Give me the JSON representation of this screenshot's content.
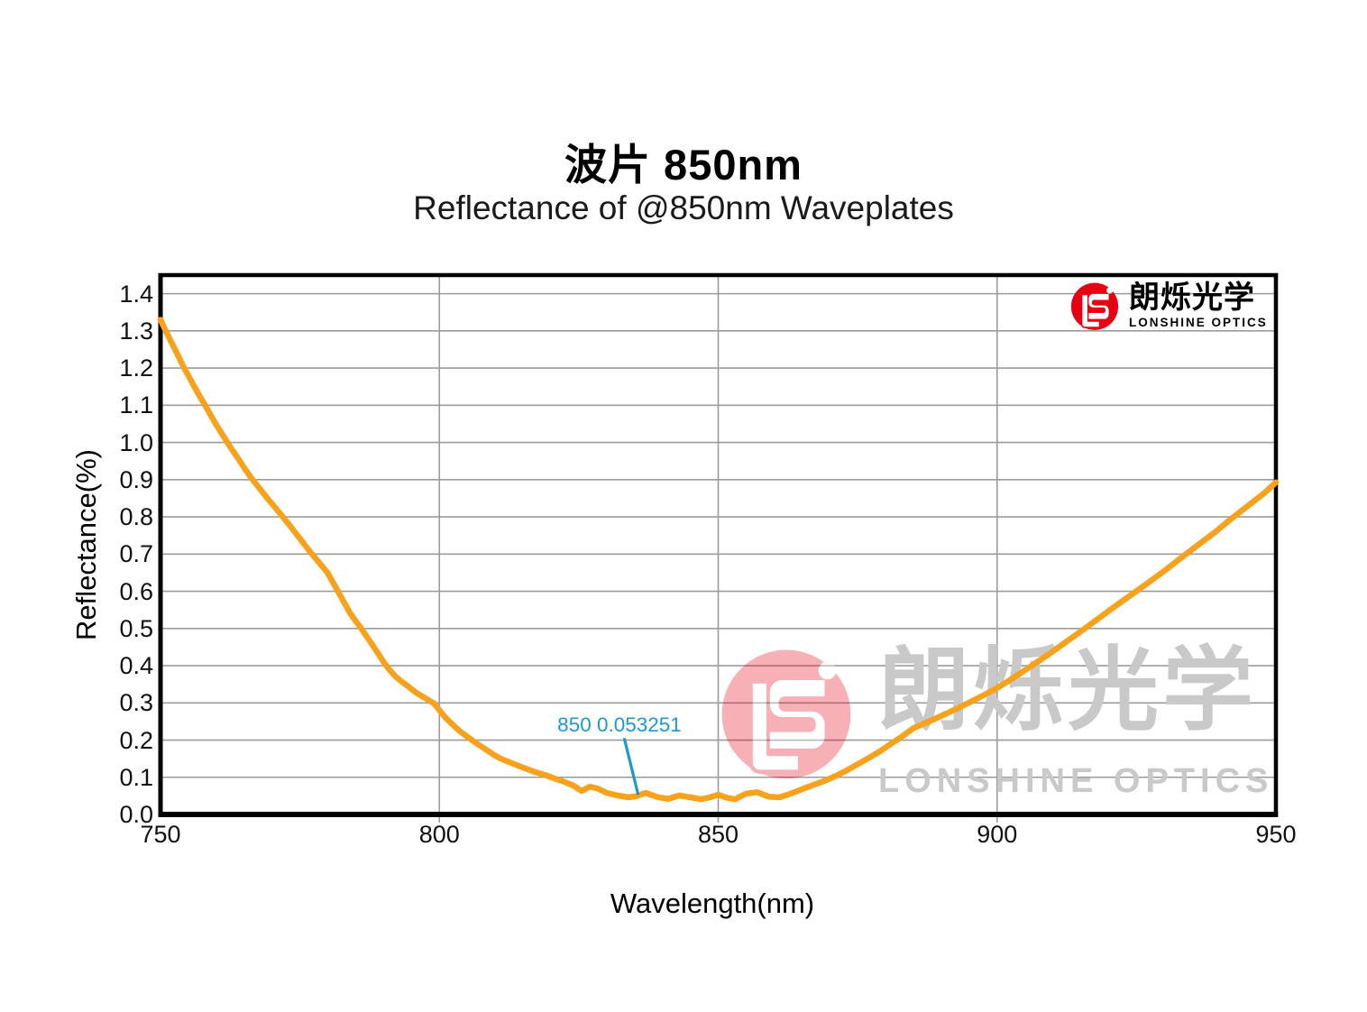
{
  "header": {
    "title": "波片 850nm",
    "subtitle": "Reflectance of @850nm Waveplates"
  },
  "brand": {
    "cn": "朗烁光学",
    "en": "LONSHINE OPTICS"
  },
  "watermark": {
    "cn": "朗烁光学",
    "en": "LONSHINE OPTICS"
  },
  "colors": {
    "curve": "#F7A21C",
    "annotation": "#1E97D4",
    "brand": "#E60012",
    "grid": "#9C9C9C",
    "axis": "#000000",
    "watermark": "#C9C9C9"
  },
  "chart_data": {
    "type": "line",
    "title": "Reflectance of @850nm Waveplates",
    "xlabel": "Wavelength(nm)",
    "ylabel": "Reflectance(%)",
    "xlim": [
      750,
      950
    ],
    "ylim": [
      0,
      1.45
    ],
    "x_ticks": [
      "750",
      "800",
      "850",
      "900",
      "950"
    ],
    "y_ticks": [
      "0.0",
      "0.1",
      "0.2",
      "0.3",
      "0.4",
      "0.5",
      "0.6",
      "0.7",
      "0.8",
      "0.9",
      "1.0",
      "1.1",
      "1.2",
      "1.3",
      "1.4"
    ],
    "grid": true,
    "legend": "none",
    "annotation": {
      "text": "850 0.053251",
      "points_to": {
        "x": 835.5,
        "y": 0.055
      },
      "line": [
        [
          833.2,
          0.202
        ],
        [
          835.6,
          0.056
        ]
      ]
    },
    "min_point": {
      "x": 850,
      "y": 0.053251
    },
    "series": [
      {
        "name": "Reflectance",
        "points": [
          [
            750,
            1.33
          ],
          [
            751,
            1.298
          ],
          [
            752,
            1.268
          ],
          [
            753,
            1.238
          ],
          [
            754,
            1.207
          ],
          [
            755,
            1.18
          ],
          [
            756,
            1.152
          ],
          [
            757,
            1.125
          ],
          [
            758,
            1.1
          ],
          [
            759,
            1.073
          ],
          [
            760,
            1.048
          ],
          [
            761,
            1.024
          ],
          [
            762,
            1.0
          ],
          [
            763,
            0.977
          ],
          [
            764,
            0.955
          ],
          [
            765,
            0.932
          ],
          [
            766,
            0.91
          ],
          [
            767,
            0.891
          ],
          [
            768,
            0.872
          ],
          [
            769,
            0.853
          ],
          [
            770,
            0.835
          ],
          [
            771,
            0.817
          ],
          [
            772,
            0.799
          ],
          [
            773,
            0.78
          ],
          [
            774,
            0.761
          ],
          [
            775,
            0.742
          ],
          [
            776,
            0.722
          ],
          [
            777,
            0.703
          ],
          [
            778,
            0.685
          ],
          [
            779,
            0.667
          ],
          [
            780,
            0.649
          ],
          [
            781,
            0.622
          ],
          [
            782,
            0.595
          ],
          [
            783,
            0.568
          ],
          [
            784,
            0.541
          ],
          [
            785,
            0.52
          ],
          [
            786,
            0.5
          ],
          [
            787,
            0.478
          ],
          [
            788,
            0.456
          ],
          [
            789,
            0.433
          ],
          [
            790,
            0.41
          ],
          [
            791,
            0.39
          ],
          [
            792,
            0.373
          ],
          [
            793,
            0.36
          ],
          [
            794,
            0.349
          ],
          [
            795,
            0.337
          ],
          [
            796,
            0.326
          ],
          [
            797,
            0.317
          ],
          [
            798,
            0.308
          ],
          [
            799,
            0.299
          ],
          [
            800,
            0.28
          ],
          [
            801,
            0.262
          ],
          [
            802,
            0.247
          ],
          [
            803,
            0.233
          ],
          [
            804,
            0.22
          ],
          [
            805,
            0.209
          ],
          [
            806,
            0.198
          ],
          [
            807,
            0.188
          ],
          [
            808,
            0.178
          ],
          [
            809,
            0.168
          ],
          [
            810,
            0.158
          ],
          [
            811,
            0.15
          ],
          [
            813,
            0.138
          ],
          [
            815,
            0.126
          ],
          [
            817,
            0.115
          ],
          [
            819,
            0.106
          ],
          [
            821,
            0.095
          ],
          [
            822,
            0.09
          ],
          [
            824,
            0.078
          ],
          [
            825.5,
            0.063
          ],
          [
            827,
            0.075
          ],
          [
            828.5,
            0.069
          ],
          [
            830,
            0.058
          ],
          [
            832,
            0.051
          ],
          [
            834,
            0.046
          ],
          [
            835.5,
            0.05
          ],
          [
            837,
            0.058
          ],
          [
            839,
            0.047
          ],
          [
            841,
            0.042
          ],
          [
            843,
            0.051
          ],
          [
            845,
            0.046
          ],
          [
            847,
            0.041
          ],
          [
            848.5,
            0.046
          ],
          [
            850,
            0.053
          ],
          [
            851.5,
            0.045
          ],
          [
            853,
            0.041
          ],
          [
            855,
            0.056
          ],
          [
            857,
            0.06
          ],
          [
            859,
            0.048
          ],
          [
            861,
            0.046
          ],
          [
            863,
            0.056
          ],
          [
            865,
            0.068
          ],
          [
            867,
            0.079
          ],
          [
            869,
            0.09
          ],
          [
            871,
            0.103
          ],
          [
            873,
            0.118
          ],
          [
            875,
            0.135
          ],
          [
            877,
            0.152
          ],
          [
            879,
            0.17
          ],
          [
            881,
            0.19
          ],
          [
            883,
            0.21
          ],
          [
            885,
            0.232
          ],
          [
            887,
            0.245
          ],
          [
            889,
            0.258
          ],
          [
            891,
            0.272
          ],
          [
            893,
            0.286
          ],
          [
            895,
            0.301
          ],
          [
            897,
            0.316
          ],
          [
            900,
            0.34
          ],
          [
            903,
            0.368
          ],
          [
            906,
            0.398
          ],
          [
            909,
            0.428
          ],
          [
            912,
            0.46
          ],
          [
            915,
            0.492
          ],
          [
            918,
            0.525
          ],
          [
            921,
            0.558
          ],
          [
            924,
            0.59
          ],
          [
            927,
            0.622
          ],
          [
            930,
            0.655
          ],
          [
            933,
            0.69
          ],
          [
            936,
            0.724
          ],
          [
            939,
            0.758
          ],
          [
            942,
            0.795
          ],
          [
            945,
            0.83
          ],
          [
            948,
            0.865
          ],
          [
            950,
            0.893
          ]
        ]
      }
    ]
  }
}
